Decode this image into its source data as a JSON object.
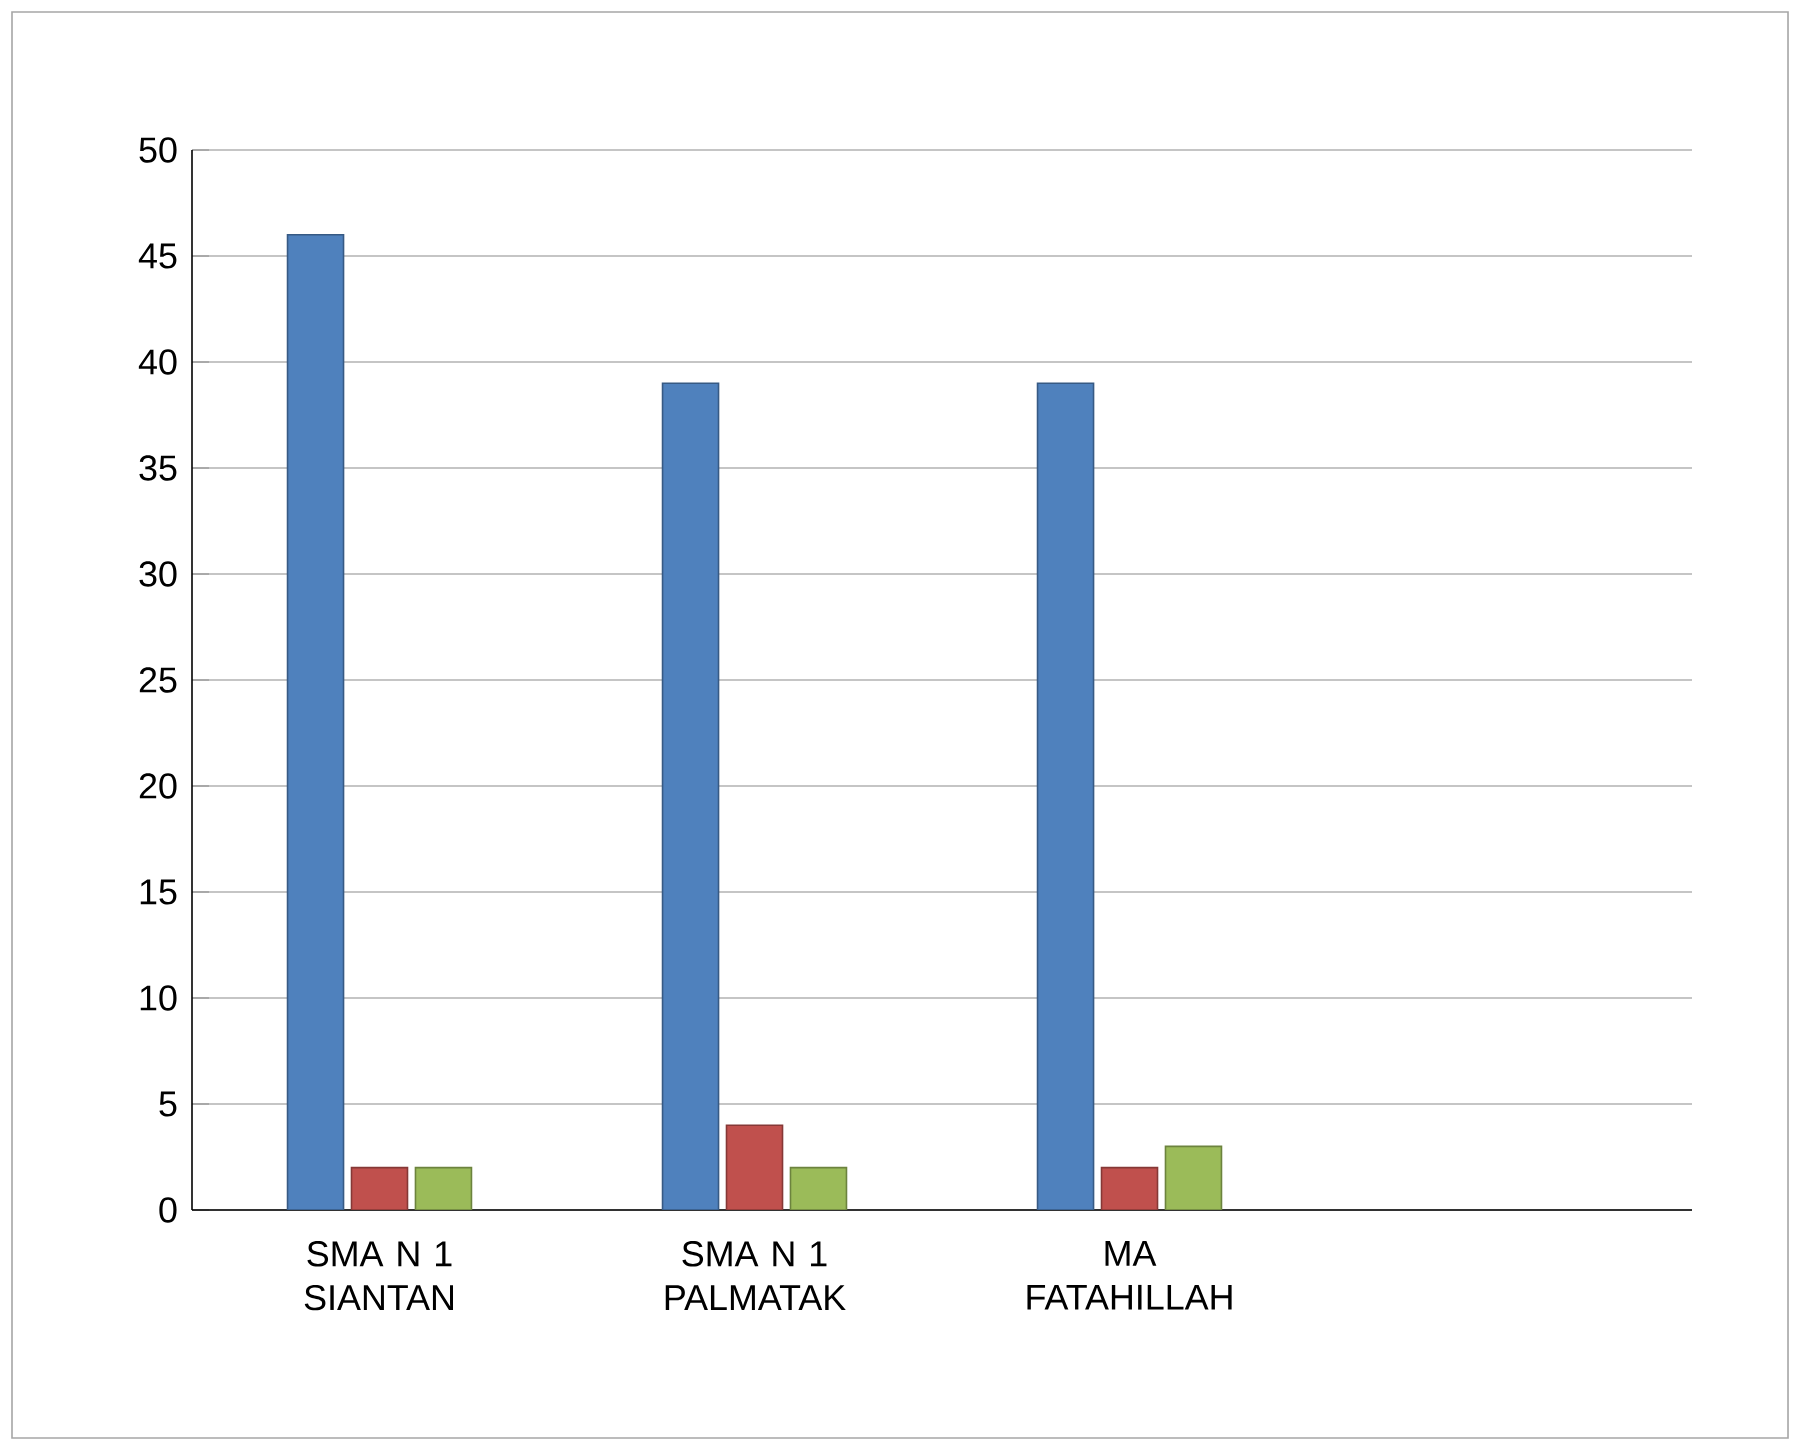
{
  "chart_data": {
    "type": "bar",
    "categories": [
      "SMA N 1 SIANTAN",
      "SMA N 1 PALMATAK",
      "MA FATAHILLAH",
      null
    ],
    "series": [
      {
        "color": "#4f81bd",
        "values": [
          46,
          39,
          39,
          null
        ]
      },
      {
        "color": "#c0504d",
        "values": [
          2,
          4,
          2,
          null
        ]
      },
      {
        "color": "#9bbb59",
        "values": [
          2,
          2,
          3,
          null
        ]
      }
    ],
    "ylim": [
      0,
      50
    ],
    "yticks": [
      0,
      5,
      10,
      15,
      20,
      25,
      30,
      35,
      40,
      45,
      50
    ],
    "grid": "y"
  }
}
